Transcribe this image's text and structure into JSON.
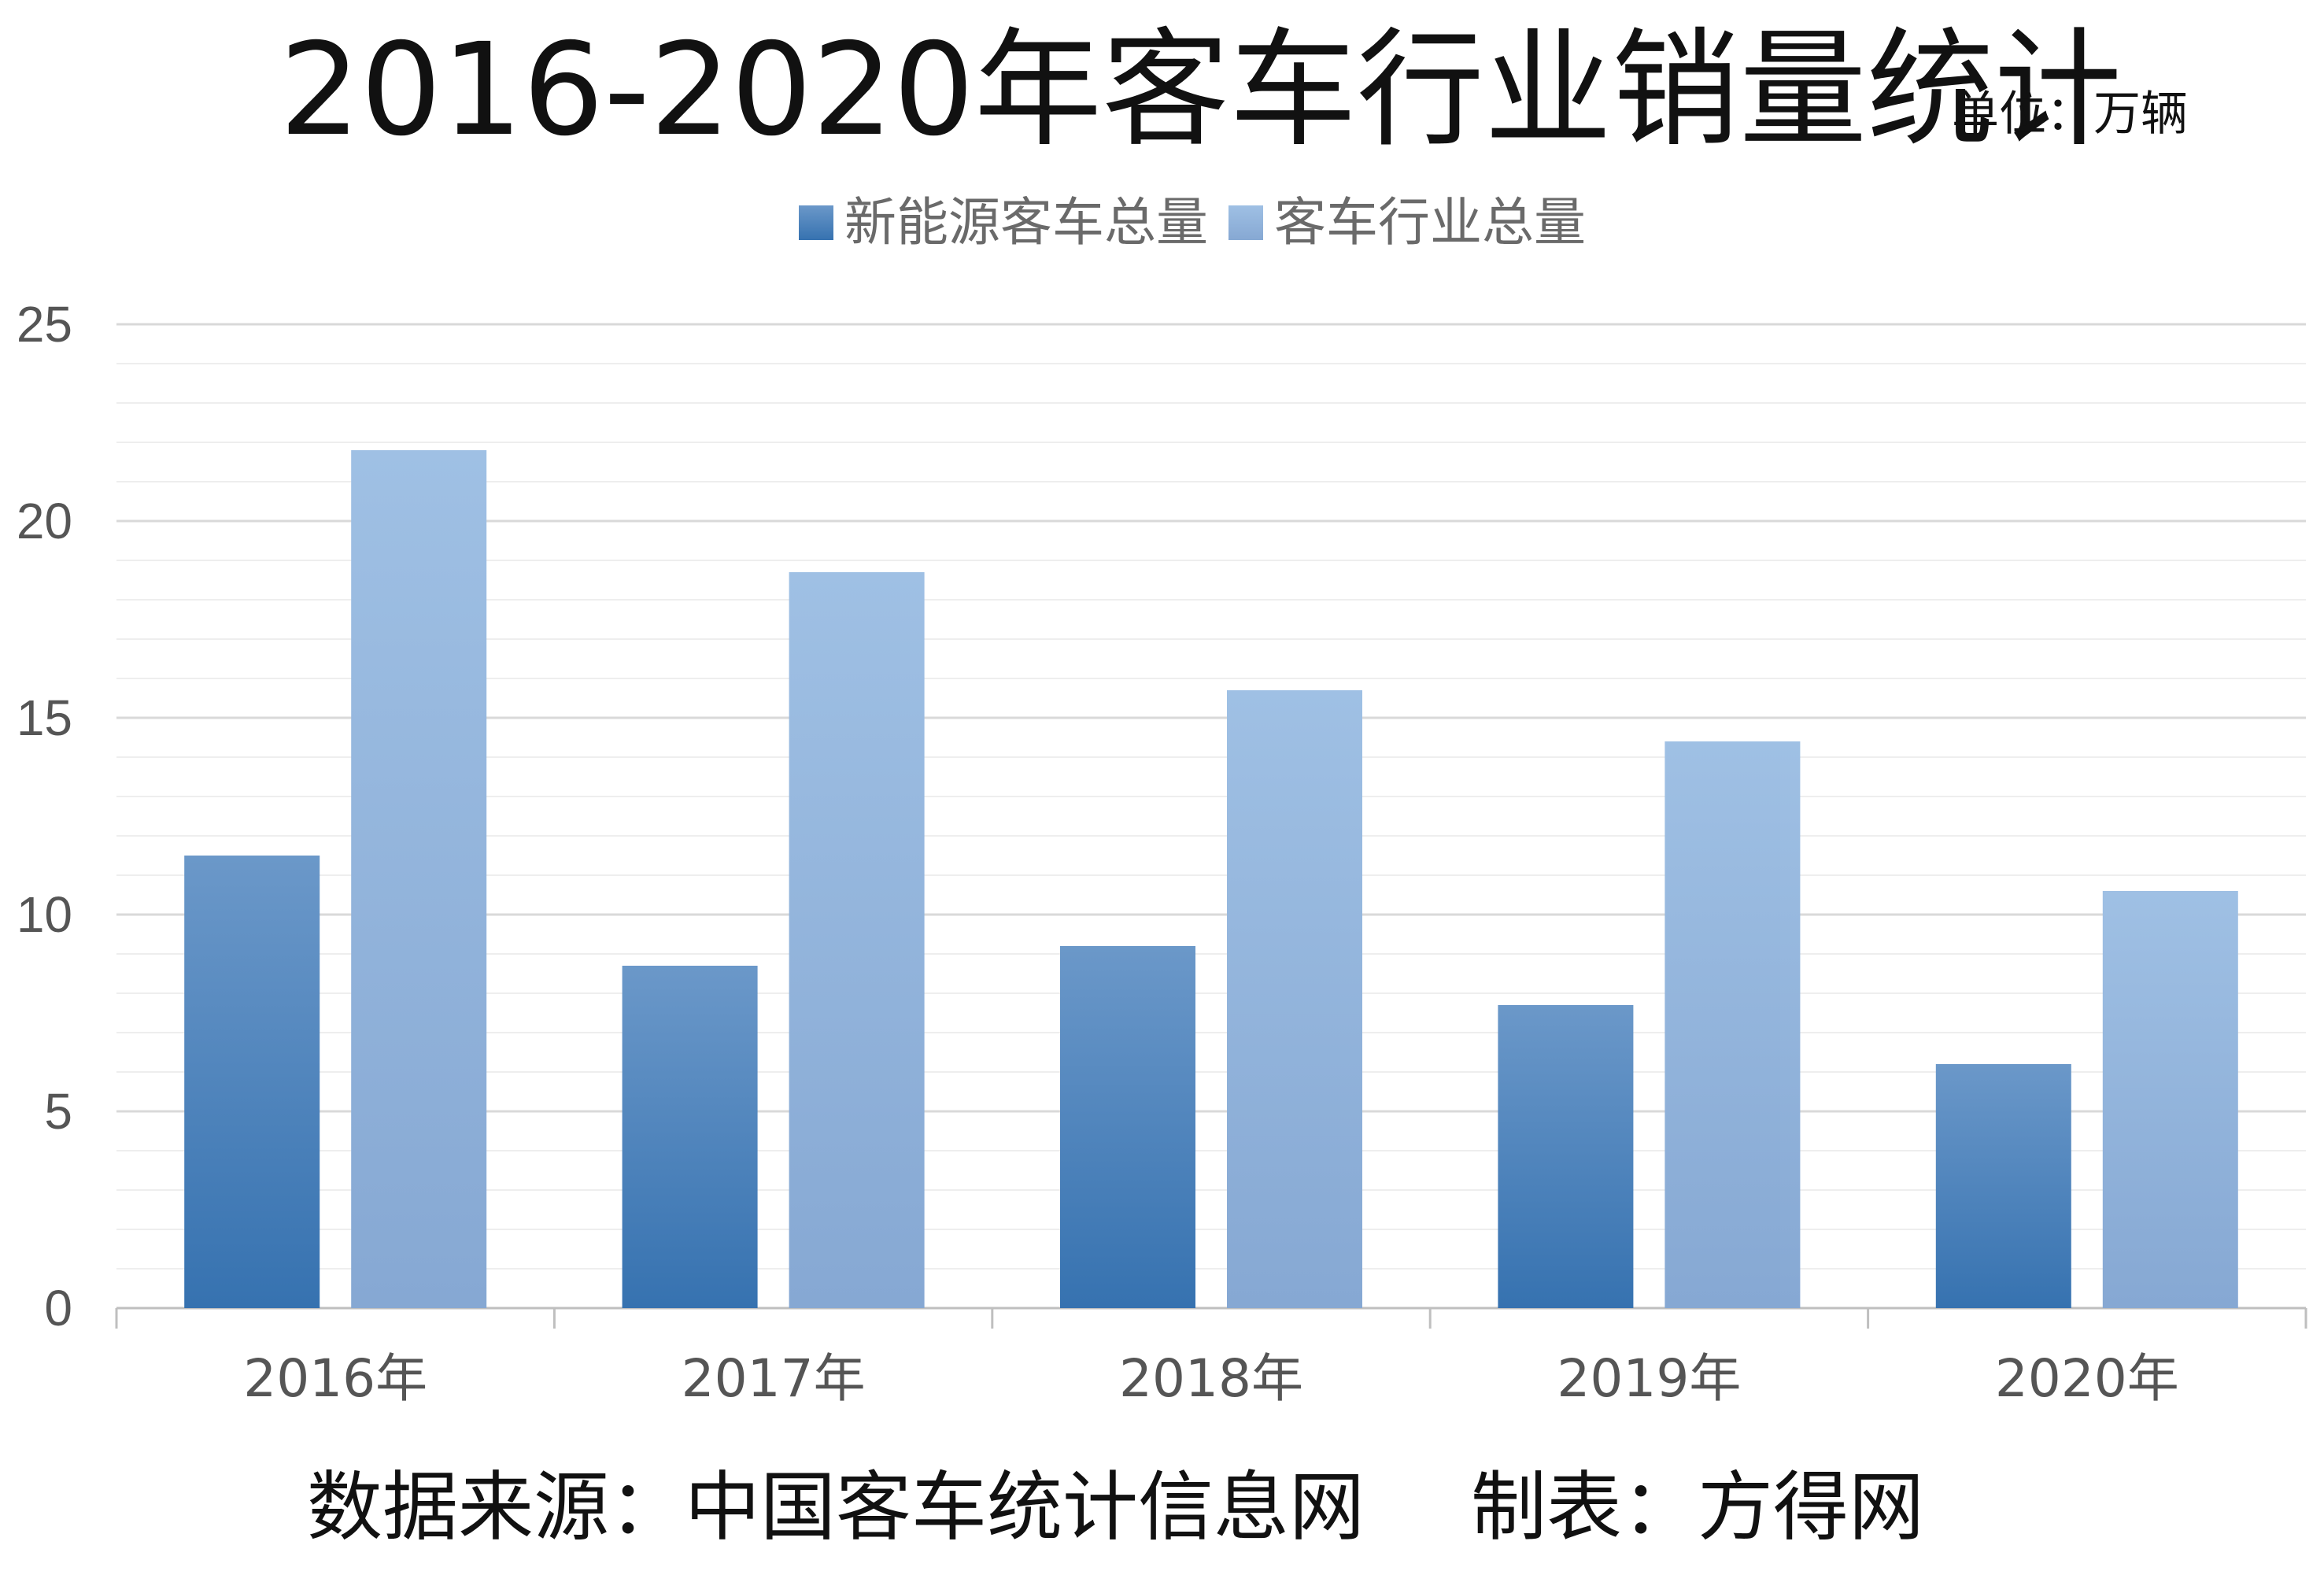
{
  "title": "2016-2020年客车行业销量统计",
  "unit": "单位：万辆",
  "source_text": "数据来源：中国客车统计信息网",
  "maker_text": "制表：方得网",
  "colors": {
    "series1_top": "#6b98c9",
    "series1_bottom": "#3672b0",
    "series2_top": "#9fc0e4",
    "series2_bottom": "#86a8d3",
    "major_grid": "#d9d9d9",
    "minor_grid": "#eeeeee",
    "axis": "#bfbfbf",
    "tick_text": "#555555"
  },
  "chart_data": {
    "type": "bar",
    "title": "2016-2020年客车行业销量统计",
    "categories": [
      "2016年",
      "2017年",
      "2018年",
      "2019年",
      "2020年"
    ],
    "series": [
      {
        "name": "新能源客车总量",
        "values": [
          11.5,
          8.7,
          9.2,
          7.7,
          6.2
        ]
      },
      {
        "name": "客车行业总量",
        "values": [
          21.8,
          18.7,
          15.7,
          14.4,
          10.6
        ]
      }
    ],
    "xlabel": "",
    "ylabel": "",
    "ylim": [
      0,
      25
    ],
    "yticks": [
      "0",
      "5",
      "10",
      "15",
      "20",
      "25"
    ],
    "grid": true,
    "legend_position": "top-center"
  }
}
